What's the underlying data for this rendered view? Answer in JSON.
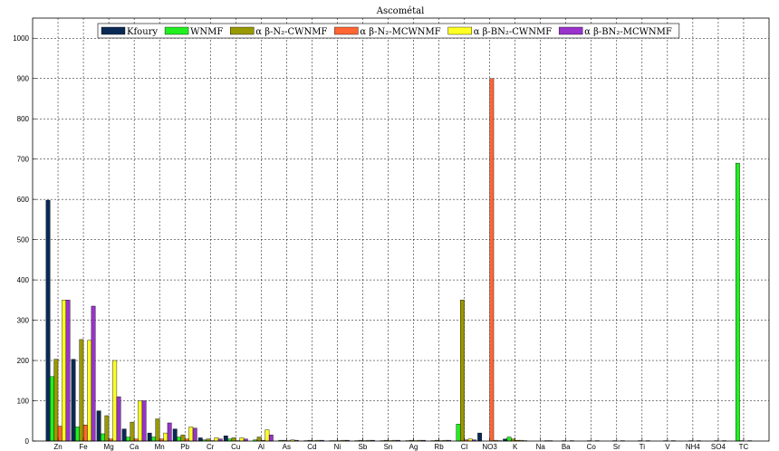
{
  "colors": {
    "series": [
      "#0a2a55",
      "#22ee22",
      "#999900",
      "#ff6633",
      "#ffff22",
      "#9933cc"
    ],
    "grid": "#000000",
    "background": "#ffffff"
  },
  "chart_data": {
    "type": "bar",
    "title": "Ascométal",
    "xlabel": "",
    "ylabel": "",
    "ylim": [
      0,
      1050
    ],
    "yticks": [
      0,
      100,
      200,
      300,
      400,
      500,
      600,
      700,
      800,
      900,
      1000
    ],
    "grid": true,
    "legend_position": "top",
    "categories": [
      "Zn",
      "Fe",
      "Mg",
      "Ca",
      "Mn",
      "Pb",
      "Cr",
      "Cu",
      "Al",
      "As",
      "Cd",
      "Ni",
      "Sb",
      "Sn",
      "Ag",
      "Rb",
      "Cl",
      "NO3",
      "K",
      "Na",
      "Ba",
      "Co",
      "Sr",
      "Ti",
      "V",
      "NH4",
      "SO4",
      "TC"
    ],
    "series": [
      {
        "name": "Kfoury",
        "values": [
          598,
          203,
          75,
          30,
          20,
          30,
          8,
          13,
          0,
          0,
          0,
          0,
          0,
          0,
          0,
          0,
          0,
          20,
          5,
          0,
          0,
          0,
          0,
          0,
          0,
          0,
          0,
          0
        ]
      },
      {
        "name": "WNMF",
        "values": [
          160,
          35,
          18,
          10,
          10,
          10,
          3,
          5,
          3,
          2,
          1,
          1,
          1,
          1,
          1,
          1,
          42,
          0,
          10,
          0,
          0,
          0,
          0,
          0,
          0,
          0,
          0,
          690
        ]
      },
      {
        "name": "α β-N₂-CWNMF",
        "values": [
          203,
          252,
          63,
          47,
          55,
          15,
          5,
          8,
          10,
          2,
          2,
          1,
          2,
          2,
          2,
          2,
          350,
          0,
          5,
          0,
          1,
          1,
          1,
          1,
          1,
          1,
          1,
          1
        ]
      },
      {
        "name": "α β-N₂-MCWNMF",
        "values": [
          37,
          40,
          5,
          5,
          5,
          5,
          1,
          1,
          2,
          1,
          1,
          1,
          1,
          1,
          1,
          1,
          3,
          900,
          2,
          0,
          0,
          0,
          0,
          0,
          0,
          0,
          0,
          0
        ]
      },
      {
        "name": "α β-BN₂-CWNMF",
        "values": [
          350,
          250,
          200,
          100,
          20,
          35,
          8,
          8,
          28,
          3,
          2,
          2,
          2,
          2,
          2,
          2,
          5,
          2,
          2,
          1,
          1,
          1,
          1,
          1,
          1,
          1,
          1,
          1
        ]
      },
      {
        "name": "α β-BN₂-MCWNMF",
        "values": [
          350,
          335,
          110,
          100,
          45,
          32,
          5,
          5,
          15,
          2,
          2,
          2,
          2,
          2,
          2,
          2,
          3,
          1,
          1,
          1,
          0,
          0,
          0,
          0,
          0,
          0,
          0,
          0
        ]
      }
    ]
  }
}
